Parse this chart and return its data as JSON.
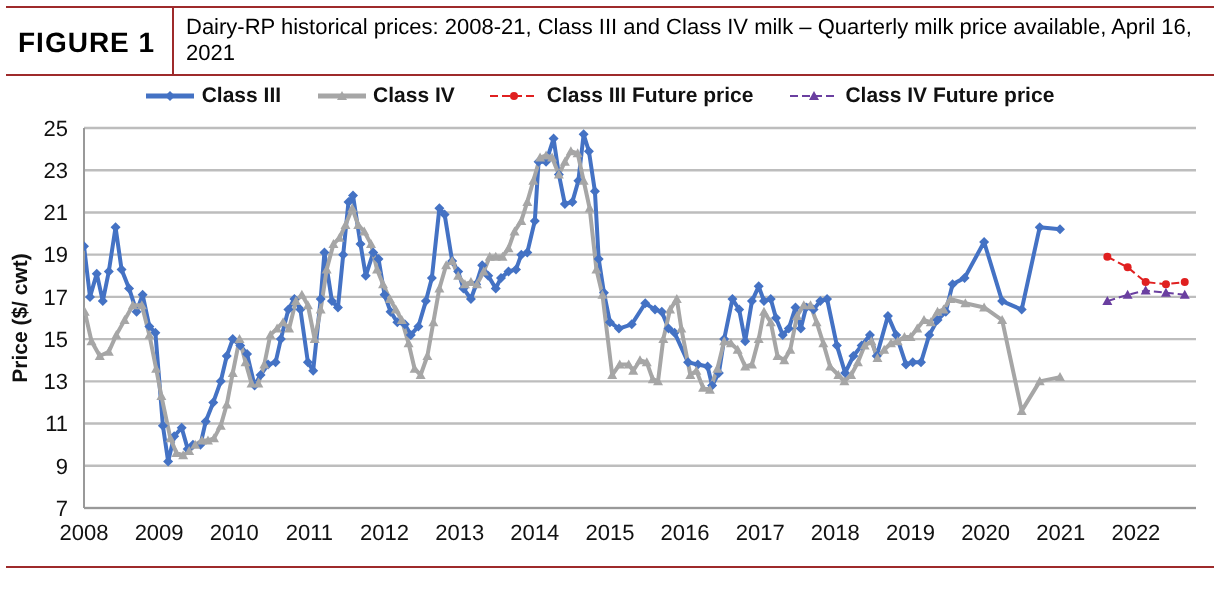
{
  "chart_data": {
    "type": "line",
    "title": "FIGURE 1",
    "subtitle": "Dairy-RP historical prices: 2008-21, Class III and Class IV milk – Quarterly milk price available, April 16, 2021",
    "ylabel": "Price ($/ cwt)",
    "xlim": [
      2008,
      2022.8
    ],
    "xticks": [
      2008,
      2009,
      2010,
      2011,
      2012,
      2013,
      2014,
      2015,
      2016,
      2017,
      2018,
      2019,
      2020,
      2021,
      2022
    ],
    "ylim": [
      7,
      25
    ],
    "yticks": [
      7,
      9,
      11,
      13,
      15,
      17,
      19,
      21,
      23,
      25
    ],
    "grid": "y",
    "legend": "top",
    "series": [
      {
        "name": "Class III",
        "color": "#4472c4",
        "marker": "diamond",
        "line_style": "solid",
        "x": [
          2008.0,
          2008.08,
          2008.17,
          2008.25,
          2008.33,
          2008.42,
          2008.5,
          2008.6,
          2008.7,
          2008.78,
          2008.87,
          2008.95,
          2009.05,
          2009.12,
          2009.2,
          2009.3,
          2009.38,
          2009.45,
          2009.55,
          2009.62,
          2009.72,
          2009.82,
          2009.9,
          2009.98,
          2010.08,
          2010.17,
          2010.27,
          2010.35,
          2010.45,
          2010.55,
          2010.62,
          2010.72,
          2010.8,
          2010.88,
          2010.98,
          2011.05,
          2011.15,
          2011.2,
          2011.3,
          2011.38,
          2011.45,
          2011.52,
          2011.58,
          2011.68,
          2011.75,
          2011.85,
          2011.92,
          2012.0,
          2012.08,
          2012.17,
          2012.27,
          2012.35,
          2012.45,
          2012.55,
          2012.63,
          2012.73,
          2012.8,
          2012.9,
          2012.98,
          2013.05,
          2013.15,
          2013.22,
          2013.3,
          2013.38,
          2013.48,
          2013.55,
          2013.65,
          2013.75,
          2013.82,
          2013.9,
          2014.0,
          2014.05,
          2014.15,
          2014.25,
          2014.32,
          2014.4,
          2014.5,
          2014.58,
          2014.65,
          2014.72,
          2014.8,
          2014.85,
          2014.92,
          2015.0,
          2015.12,
          2015.29,
          2015.47,
          2015.6,
          2015.69,
          2015.78,
          2015.86,
          2016.04,
          2016.17,
          2016.3,
          2016.36,
          2016.45,
          2016.52,
          2016.63,
          2016.72,
          2016.8,
          2016.89,
          2016.98,
          2017.05,
          2017.14,
          2017.21,
          2017.3,
          2017.38,
          2017.47,
          2017.54,
          2017.61,
          2017.71,
          2017.8,
          2017.89,
          2018.02,
          2018.13,
          2018.24,
          2018.35,
          2018.46,
          2018.55,
          2018.7,
          2018.81,
          2018.94,
          2019.03,
          2019.14,
          2019.25,
          2019.36,
          2019.47,
          2019.56,
          2019.72,
          2019.98,
          2020.22,
          2020.48,
          2020.72,
          2020.99
        ],
        "values": [
          19.4,
          17.0,
          18.1,
          16.8,
          18.2,
          20.3,
          18.3,
          17.4,
          16.3,
          17.1,
          15.6,
          15.3,
          10.9,
          9.2,
          10.4,
          10.8,
          9.8,
          10.0,
          10.0,
          11.1,
          12.0,
          13.0,
          14.2,
          15.0,
          14.7,
          14.3,
          12.8,
          13.3,
          13.8,
          13.9,
          15.0,
          16.4,
          16.9,
          16.4,
          13.9,
          13.5,
          16.9,
          19.1,
          16.8,
          16.5,
          19.0,
          21.5,
          21.8,
          19.5,
          18.0,
          19.1,
          18.8,
          17.1,
          16.3,
          15.8,
          15.7,
          15.2,
          15.6,
          16.8,
          17.9,
          21.2,
          20.9,
          18.7,
          18.2,
          17.4,
          16.9,
          17.6,
          18.5,
          18.0,
          17.4,
          17.9,
          18.2,
          18.3,
          19.0,
          19.1,
          20.6,
          23.4,
          23.4,
          24.5,
          22.8,
          21.4,
          21.5,
          22.5,
          24.7,
          23.9,
          22.0,
          18.8,
          17.2,
          15.8,
          15.5,
          15.7,
          16.7,
          16.4,
          16.3,
          15.5,
          15.3,
          13.9,
          13.8,
          13.7,
          12.8,
          13.4,
          15.0,
          16.9,
          16.4,
          14.9,
          16.8,
          17.5,
          16.8,
          16.9,
          16.0,
          15.2,
          15.5,
          16.5,
          15.5,
          16.5,
          16.4,
          16.8,
          16.9,
          14.7,
          13.4,
          14.2,
          14.7,
          15.2,
          14.2,
          16.1,
          15.2,
          13.8,
          13.9,
          13.9,
          15.2,
          15.9,
          16.3,
          17.6,
          17.9,
          19.6,
          16.8,
          16.4,
          20.3,
          20.2
        ]
      },
      {
        "name": "Class IV",
        "color": "#a6a6a6",
        "marker": "triangle",
        "line_style": "solid",
        "x": [
          2008.01,
          2008.1,
          2008.21,
          2008.33,
          2008.43,
          2008.54,
          2008.65,
          2008.77,
          2008.87,
          2008.96,
          2009.03,
          2009.15,
          2009.23,
          2009.32,
          2009.4,
          2009.48,
          2009.57,
          2009.65,
          2009.73,
          2009.82,
          2009.9,
          2009.98,
          2010.07,
          2010.15,
          2010.23,
          2010.32,
          2010.4,
          2010.48,
          2010.57,
          2010.65,
          2010.73,
          2010.82,
          2010.9,
          2010.98,
          2011.07,
          2011.15,
          2011.23,
          2011.32,
          2011.4,
          2011.48,
          2011.57,
          2011.65,
          2011.73,
          2011.82,
          2011.9,
          2011.98,
          2012.07,
          2012.15,
          2012.23,
          2012.32,
          2012.4,
          2012.48,
          2012.57,
          2012.65,
          2012.73,
          2012.82,
          2012.9,
          2012.98,
          2013.07,
          2013.15,
          2013.23,
          2013.32,
          2013.4,
          2013.48,
          2013.57,
          2013.65,
          2013.73,
          2013.82,
          2013.9,
          2013.98,
          2014.07,
          2014.15,
          2014.23,
          2014.32,
          2014.4,
          2014.48,
          2014.57,
          2014.65,
          2014.73,
          2014.82,
          2014.9,
          2015.03,
          2015.13,
          2015.25,
          2015.31,
          2015.4,
          2015.49,
          2015.57,
          2015.64,
          2015.71,
          2015.8,
          2015.89,
          2015.95,
          2016.07,
          2016.15,
          2016.24,
          2016.33,
          2016.43,
          2016.52,
          2016.61,
          2016.7,
          2016.8,
          2016.89,
          2016.98,
          2017.05,
          2017.14,
          2017.23,
          2017.32,
          2017.4,
          2017.49,
          2017.58,
          2017.67,
          2017.75,
          2017.84,
          2017.93,
          2018.04,
          2018.12,
          2018.21,
          2018.3,
          2018.39,
          2018.48,
          2018.56,
          2018.65,
          2018.74,
          2018.83,
          2018.92,
          2019.0,
          2019.09,
          2019.18,
          2019.27,
          2019.36,
          2019.44,
          2019.53,
          2019.73,
          2019.98,
          2020.22,
          2020.48,
          2020.72,
          2020.99
        ],
        "values": [
          16.3,
          14.9,
          14.2,
          14.4,
          15.2,
          15.9,
          16.6,
          16.6,
          15.2,
          13.6,
          12.3,
          10.3,
          9.6,
          9.5,
          9.7,
          10.0,
          10.2,
          10.2,
          10.3,
          10.9,
          11.9,
          13.4,
          15.0,
          13.9,
          12.9,
          12.9,
          13.8,
          15.2,
          15.5,
          15.8,
          15.5,
          16.8,
          17.1,
          16.6,
          15.0,
          16.4,
          18.3,
          19.5,
          19.8,
          20.4,
          21.2,
          20.4,
          20.1,
          19.5,
          18.3,
          17.6,
          16.9,
          16.4,
          15.9,
          14.8,
          13.6,
          13.3,
          14.2,
          15.8,
          17.4,
          18.5,
          18.7,
          18.0,
          17.6,
          17.7,
          17.6,
          18.2,
          18.9,
          18.9,
          18.9,
          19.3,
          20.1,
          20.6,
          21.5,
          22.5,
          23.6,
          23.7,
          23.6,
          22.8,
          23.4,
          23.9,
          23.8,
          22.5,
          21.2,
          18.3,
          17.1,
          13.3,
          13.8,
          13.8,
          13.5,
          14.0,
          13.9,
          13.1,
          13.0,
          15.0,
          16.4,
          16.9,
          15.5,
          13.3,
          13.5,
          12.7,
          12.6,
          13.6,
          14.9,
          14.8,
          14.5,
          13.7,
          13.8,
          15.0,
          16.3,
          15.8,
          14.2,
          14.0,
          14.5,
          16.1,
          16.6,
          16.6,
          15.8,
          14.8,
          13.7,
          13.3,
          13.0,
          13.3,
          13.9,
          14.7,
          14.9,
          14.1,
          14.5,
          14.8,
          14.9,
          15.1,
          15.1,
          15.5,
          15.9,
          15.8,
          16.3,
          16.4,
          16.9,
          16.7,
          16.5,
          15.9,
          11.6,
          13.0,
          13.2
        ]
      },
      {
        "name": "Class III Future price",
        "color": "#e02020",
        "marker": "circle",
        "line_style": "dashed",
        "x": [
          2021.62,
          2021.89,
          2022.13,
          2022.4,
          2022.65
        ],
        "values": [
          18.9,
          18.4,
          17.7,
          17.6,
          17.7
        ]
      },
      {
        "name": "Class IV Future price",
        "color": "#6a3fa0",
        "marker": "triangle",
        "line_style": "dashed",
        "x": [
          2021.62,
          2021.89,
          2022.13,
          2022.4,
          2022.65
        ],
        "values": [
          16.8,
          17.1,
          17.3,
          17.2,
          17.1
        ]
      }
    ]
  }
}
